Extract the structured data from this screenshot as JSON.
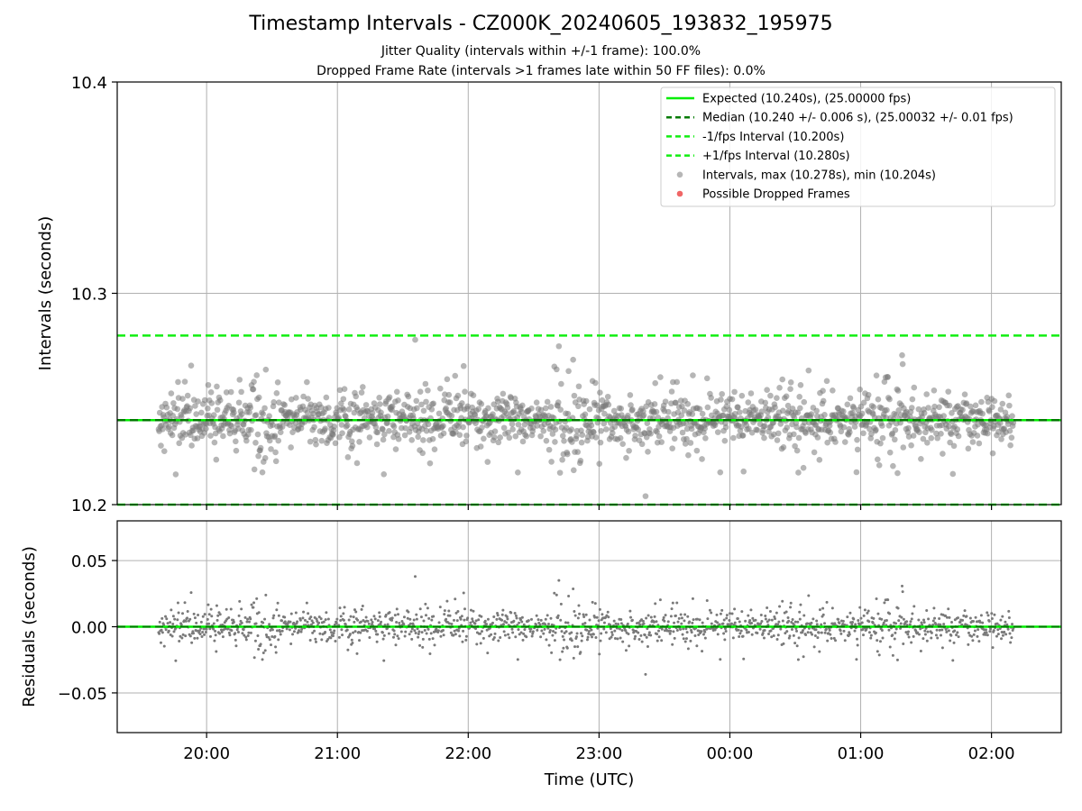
{
  "header": {
    "title": "Timestamp Intervals - CZ000K_20240605_193832_195975",
    "subtitle_jitter": "Jitter Quality (intervals within +/-1 frame): 100.0%",
    "subtitle_dropped": "Dropped Frame Rate (intervals >1 frames late within 50 FF files): 0.0%"
  },
  "colors": {
    "expected": "#00ee00",
    "median": "#007a00",
    "bounds": "#11ee11",
    "points": "#7a7a7a",
    "dropped": "#ee5555",
    "grid": "#b0b0b0"
  },
  "chart_data": [
    {
      "type": "scatter",
      "panel": "intervals",
      "ylabel": "Intervals (seconds)",
      "ylim": [
        10.2,
        10.4
      ],
      "yticks": [
        "10.2",
        "10.3",
        "10.4"
      ],
      "ytick_values": [
        10.2,
        10.3,
        10.4
      ],
      "grid": true,
      "legend_position": "upper right",
      "reference_lines": [
        {
          "name": "Expected (10.240s), (25.00000 fps)",
          "y": 10.24,
          "style": "solid"
        },
        {
          "name": "Median (10.240 +/- 0.006 s), (25.00032 +/- 0.01 fps)",
          "y": 10.24,
          "style": "dashed"
        },
        {
          "name": "-1/fps Interval (10.200s)",
          "y": 10.2,
          "style": "dashed"
        },
        {
          "name": "+1/fps Interval (10.280s)",
          "y": 10.28,
          "style": "dashed"
        }
      ],
      "series": [
        {
          "name": "Intervals, max (10.278s), min (10.204s)",
          "max": 10.278,
          "min": 10.204,
          "center": 10.24,
          "spread": 0.006
        },
        {
          "name": "Possible Dropped Frames",
          "count": 0
        }
      ]
    },
    {
      "type": "scatter",
      "panel": "residuals",
      "xlabel": "Time (UTC)",
      "ylabel": "Residuals (seconds)",
      "ylim": [
        -0.08,
        0.08
      ],
      "yticks": [
        "−0.05",
        "0.00",
        "0.05"
      ],
      "ytick_values": [
        -0.05,
        0.0,
        0.05
      ],
      "xlim": [
        "19:19",
        "02:32"
      ],
      "xticks": [
        "20:00",
        "21:00",
        "22:00",
        "23:00",
        "00:00",
        "01:00",
        "02:00"
      ],
      "xtick_hours": [
        20,
        21,
        22,
        23,
        24,
        25,
        26
      ],
      "data_start": "19:38",
      "data_end": "02:10",
      "zero_line": 0.0,
      "grid": true
    }
  ]
}
